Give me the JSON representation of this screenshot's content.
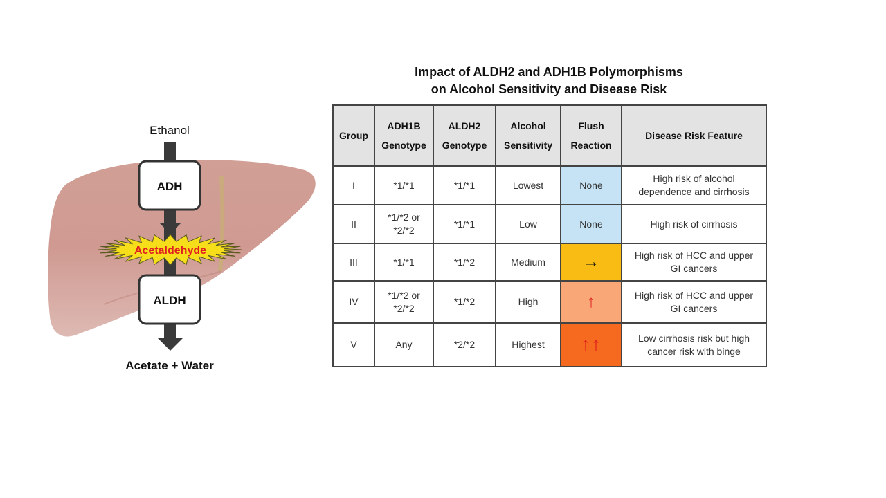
{
  "pathway": {
    "start_label": "Ethanol",
    "enzyme1": "ADH",
    "intermediate": "Acetaldehyde",
    "enzyme2": "ALDH",
    "end_label": "Acetate + Water"
  },
  "table": {
    "title_line1": "Impact of ALDH2 and ADH1B Polymorphisms",
    "title_line2": "on Alcohol Sensitivity and Disease Risk",
    "headers": {
      "group": "Group",
      "adh1b_1": "ADH1B",
      "adh1b_2": "Genotype",
      "aldh2_1": "ALDH2",
      "aldh2_2": "Genotype",
      "sens_1": "Alcohol",
      "sens_2": "Sensitivity",
      "flush_1": "Flush",
      "flush_2": "Reaction",
      "risk": "Disease Risk Feature"
    },
    "rows": [
      {
        "group": "I",
        "adh1b_1": "*1/*1",
        "adh1b_2": "",
        "aldh2": "*1/*1",
        "sensitivity": "Lowest",
        "flush": "None",
        "flush_color": "#c5e3f5",
        "risk_1": "High risk of alcohol",
        "risk_2": "dependence and cirrhosis"
      },
      {
        "group": "II",
        "adh1b_1": "*1/*2 or",
        "adh1b_2": "*2/*2",
        "aldh2": "*1/*1",
        "sensitivity": "Low",
        "flush": "None",
        "flush_color": "#c5e3f5",
        "risk_1": "High risk of cirrhosis",
        "risk_2": ""
      },
      {
        "group": "III",
        "adh1b_1": "*1/*1",
        "adh1b_2": "",
        "aldh2": "*1/*2",
        "sensitivity": "Medium",
        "flush": "→",
        "flush_color": "#f9bc14",
        "flush_text_color": "#111111",
        "risk_1": "High risk of HCC and upper",
        "risk_2": "GI cancers"
      },
      {
        "group": "IV",
        "adh1b_1": "*1/*2 or",
        "adh1b_2": "*2/*2",
        "aldh2": "*1/*2",
        "sensitivity": "High",
        "flush": "↑",
        "flush_color": "#f9a777",
        "flush_text_color": "#e02020",
        "risk_1": "High risk of HCC and upper",
        "risk_2": "GI cancers"
      },
      {
        "group": "V",
        "adh1b_1": "Any",
        "adh1b_2": "",
        "aldh2": "*2/*2",
        "sensitivity": "Highest",
        "flush": "↑↑",
        "flush_color": "#f56a1f",
        "flush_text_color": "#e02020",
        "risk_1": "Low cirrhosis risk but high",
        "risk_2": "cancer risk with binge"
      }
    ]
  }
}
